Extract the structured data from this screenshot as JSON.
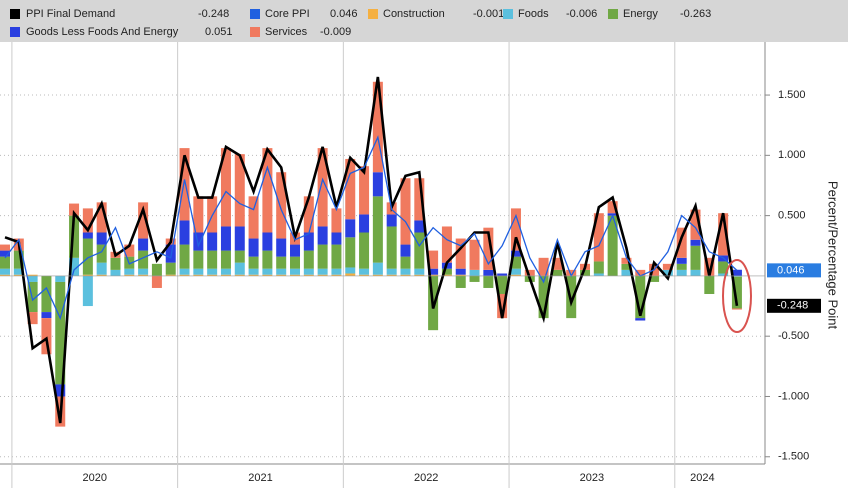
{
  "chart_data": {
    "type": "bar",
    "y_axis_label": "Percent/Percentage Point",
    "categories": [
      null,
      null,
      null,
      null,
      null,
      null,
      "2020",
      null,
      null,
      null,
      null,
      null,
      null,
      null,
      null,
      null,
      null,
      null,
      "2021",
      null,
      null,
      null,
      null,
      null,
      null,
      null,
      null,
      null,
      null,
      null,
      "2022",
      null,
      null,
      null,
      null,
      null,
      null,
      null,
      null,
      null,
      null,
      null,
      "2023",
      null,
      null,
      null,
      null,
      null,
      null,
      null,
      "2024",
      null,
      null,
      null
    ],
    "ylim": [
      -1.56,
      1.94
    ],
    "yticks": [
      {
        "value": -1.5,
        "label": "-1.500"
      },
      {
        "value": -1,
        "label": "-1.000"
      },
      {
        "value": -0.5,
        "label": "-0.500"
      },
      {
        "value": 0.5,
        "label": "0.500"
      },
      {
        "value": 1,
        "label": "1.000"
      },
      {
        "value": 1.5,
        "label": "1.500"
      }
    ],
    "grid": true,
    "series": [
      {
        "name": "PPI Final Demand",
        "type": "line",
        "color": "#000000",
        "values": [
          0.32,
          0.28,
          -0.6,
          -0.52,
          -1.22,
          0.52,
          0.38,
          0.6,
          0.17,
          0.25,
          0.55,
          0.13,
          0.28,
          1.0,
          0.65,
          0.65,
          1.07,
          1.0,
          0.7,
          1.05,
          0.9,
          0.32,
          0.65,
          1.07,
          0.57,
          0.98,
          0.86,
          1.65,
          0.57,
          0.83,
          0.86,
          -0.27,
          0.11,
          0.23,
          0.36,
          0.36,
          -0.35,
          0.32,
          -0.02,
          -0.35,
          0.28,
          -0.22,
          0.07,
          0.57,
          0.65,
          0.23,
          -0.33,
          0.11,
          -0.02,
          0.32,
          0.58,
          0,
          0.52,
          -0.248
        ]
      },
      {
        "name": "Core PPI",
        "type": "line",
        "color": "#2060e0",
        "values": [
          0.15,
          0.3,
          -0.2,
          -0.1,
          -0.35,
          0.05,
          0.15,
          0.2,
          0.4,
          0.1,
          0.15,
          0.2,
          0.15,
          0.8,
          0.25,
          0.5,
          0.7,
          0.6,
          0.55,
          0.9,
          0.55,
          0.3,
          0.35,
          0.8,
          0.55,
          0.85,
          0.9,
          1.15,
          0.55,
          0.45,
          0.25,
          0.4,
          0.3,
          0.25,
          0.35,
          0.1,
          0.25,
          0.5,
          0.15,
          -0.05,
          0.3,
          0.0,
          0.2,
          0.25,
          0.5,
          0.15,
          0,
          0.05,
          0.2,
          0.5,
          0.4,
          0.2,
          0.15,
          0.046
        ]
      },
      {
        "name": "Construction",
        "type": "bar",
        "color": "#f5b041",
        "values": [
          0.01,
          0.01,
          0.01,
          0,
          0,
          0,
          0.01,
          0.01,
          0,
          0.01,
          0.01,
          0,
          0.01,
          0.01,
          0.01,
          0.01,
          0.01,
          0.01,
          0.01,
          0.01,
          0.01,
          0.01,
          0.01,
          0.01,
          0.01,
          0.02,
          0.01,
          0.01,
          0.01,
          0.01,
          0.01,
          0.01,
          0.01,
          0.01,
          0,
          0,
          0,
          0.01,
          0,
          0,
          0,
          0,
          0,
          0,
          0,
          0,
          0,
          0,
          0,
          0,
          0,
          0,
          0,
          -0.001
        ]
      },
      {
        "name": "Foods",
        "type": "bar",
        "color": "#5bc0de",
        "values": [
          0.05,
          0.05,
          -0.05,
          0,
          -0.05,
          0.15,
          -0.25,
          0.1,
          0.05,
          0.05,
          0.05,
          0,
          0,
          0.05,
          0.05,
          0.05,
          0.05,
          0.1,
          0.05,
          0.05,
          0.05,
          0.05,
          0.05,
          0.05,
          0.05,
          0.05,
          0.05,
          0.1,
          0.05,
          0.05,
          0.05,
          0,
          0,
          0,
          0.05,
          0,
          0,
          0.05,
          0,
          0,
          0,
          0,
          0,
          0.02,
          0,
          0.05,
          0,
          0,
          0.05,
          0.05,
          0.05,
          0,
          0.02,
          -0.006
        ]
      },
      {
        "name": "Energy",
        "type": "bar",
        "color": "#70a845",
        "values": [
          0.1,
          0.15,
          -0.25,
          -0.3,
          -0.85,
          0.35,
          0.3,
          0.15,
          0.1,
          0.1,
          0.15,
          0.1,
          0.1,
          0.2,
          0.15,
          0.15,
          0.15,
          0.1,
          0.1,
          0.15,
          0.1,
          0.1,
          0.15,
          0.2,
          0.2,
          0.25,
          0.3,
          0.55,
          0.35,
          0.1,
          0.3,
          -0.45,
          0.05,
          -0.1,
          -0.05,
          -0.1,
          -0.15,
          0.1,
          -0.05,
          -0.35,
          0.05,
          -0.35,
          0.05,
          0.1,
          0.5,
          0.05,
          -0.35,
          -0.05,
          0,
          0.05,
          0.2,
          -0.15,
          0.1,
          -0.263
        ]
      },
      {
        "name": "Goods Less Foods And Energy",
        "type": "bar",
        "color": "#2a3fe0",
        "values": [
          0.05,
          0,
          0,
          -0.05,
          -0.1,
          0,
          0.05,
          0.1,
          0,
          0,
          0.1,
          0,
          0.15,
          0.2,
          0.15,
          0.15,
          0.2,
          0.2,
          0.15,
          0.15,
          0.15,
          0.1,
          0.15,
          0.15,
          0.1,
          0.15,
          0.15,
          0.2,
          0.1,
          0.1,
          0.1,
          0.05,
          0.05,
          0.05,
          0,
          0.05,
          0.02,
          0.05,
          0,
          0,
          0,
          0,
          0,
          0,
          0.02,
          0,
          -0.02,
          0,
          0,
          0.05,
          0.05,
          0,
          0.05,
          0.051
        ]
      },
      {
        "name": "Services",
        "type": "bar",
        "color": "#f07a5f",
        "values": [
          0.05,
          0.1,
          -0.1,
          -0.3,
          -0.25,
          0.1,
          0.2,
          0.25,
          0.05,
          0.1,
          0.3,
          -0.1,
          0.05,
          0.6,
          0.3,
          0.3,
          0.65,
          0.6,
          0.35,
          0.7,
          0.55,
          0.1,
          0.3,
          0.65,
          0.2,
          0.5,
          0.4,
          0.75,
          0.1,
          0.55,
          0.35,
          0.15,
          0.3,
          0.25,
          0.25,
          0.35,
          -0.2,
          0.35,
          0.05,
          0.15,
          0.1,
          0.05,
          0.05,
          0.4,
          0.1,
          0.05,
          0.05,
          0.1,
          0.05,
          0.25,
          0.25,
          0.15,
          0.35,
          -0.009
        ]
      }
    ]
  }
}
